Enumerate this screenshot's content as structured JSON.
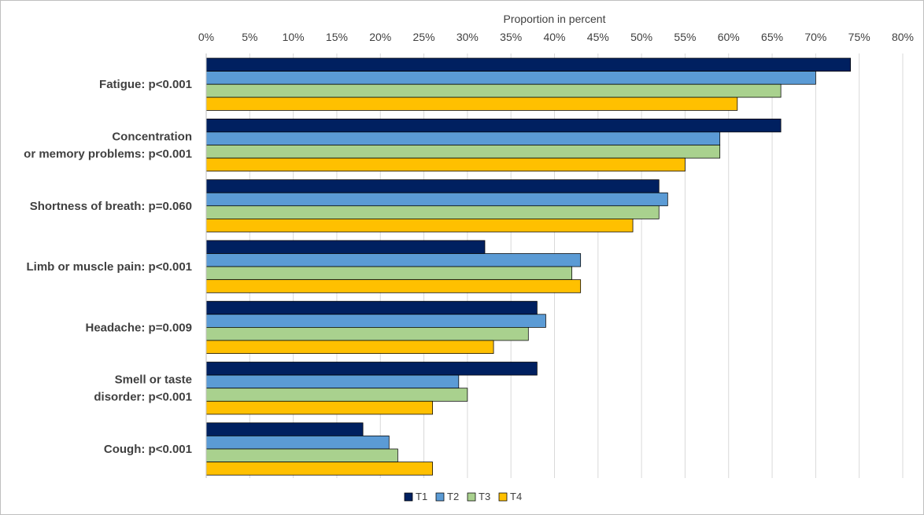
{
  "chart_data": {
    "type": "bar",
    "orientation": "horizontal",
    "title": "",
    "xlabel": "Proportion in percent",
    "ylabel": "",
    "xlim": [
      0,
      80
    ],
    "x_ticks": [
      0,
      5,
      10,
      15,
      20,
      25,
      30,
      35,
      40,
      45,
      50,
      55,
      60,
      65,
      70,
      75,
      80
    ],
    "x_tick_labels": [
      "0%",
      "5%",
      "10%",
      "15%",
      "20%",
      "25%",
      "30%",
      "35%",
      "40%",
      "45%",
      "50%",
      "55%",
      "60%",
      "65%",
      "70%",
      "75%",
      "80%"
    ],
    "x_axis_position": "top",
    "grid": true,
    "legend_position": "bottom",
    "categories": [
      "Fatigue: p<0.001",
      "Concentration or memory problems: p<0.001",
      "Shortness of breath: p=0.060",
      "Limb or muscle pain: p<0.001",
      "Headache: p=0.009",
      "Smell or taste disorder: p<0.001",
      "Cough: p<0.001"
    ],
    "category_label_lines": [
      [
        "Fatigue: p<0.001"
      ],
      [
        "Concentration",
        "or memory problems: p<0.001"
      ],
      [
        "Shortness of breath: p=0.060"
      ],
      [
        "Limb or muscle pain: p<0.001"
      ],
      [
        "Headache: p=0.009"
      ],
      [
        "Smell or taste",
        "disorder: p<0.001"
      ],
      [
        "Cough: p<0.001"
      ]
    ],
    "series": [
      {
        "name": "T1",
        "color": "#002060",
        "values": [
          74,
          66,
          52,
          32,
          38,
          38,
          18
        ]
      },
      {
        "name": "T2",
        "color": "#5b9bd5",
        "values": [
          70,
          59,
          53,
          43,
          39,
          29,
          21
        ]
      },
      {
        "name": "T3",
        "color": "#a9d18e",
        "values": [
          66,
          59,
          52,
          42,
          37,
          30,
          22
        ]
      },
      {
        "name": "T4",
        "color": "#ffc000",
        "values": [
          61,
          55,
          49,
          43,
          33,
          26,
          26
        ]
      }
    ]
  }
}
